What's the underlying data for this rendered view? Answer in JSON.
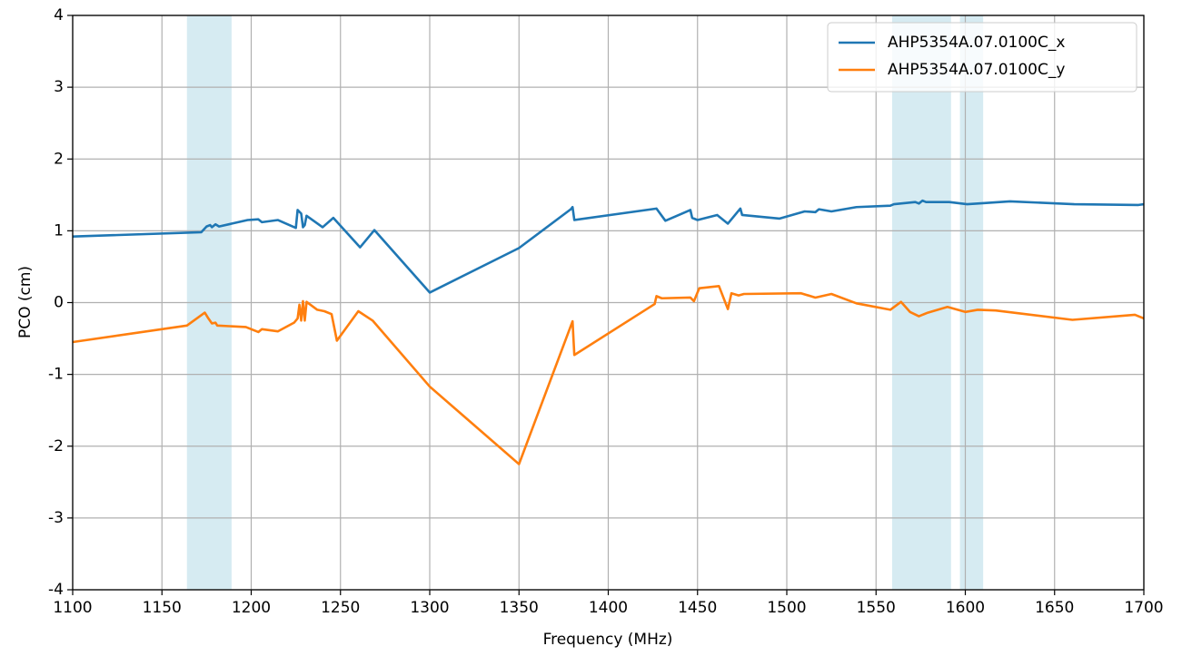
{
  "chart_data": {
    "type": "line",
    "xlabel": "Frequency (MHz)",
    "ylabel": "PCO (cm)",
    "xlim": [
      1100,
      1700
    ],
    "ylim": [
      -4,
      4
    ],
    "xticks": [
      1100,
      1150,
      1200,
      1250,
      1300,
      1350,
      1400,
      1450,
      1500,
      1550,
      1600,
      1650,
      1700
    ],
    "yticks": [
      -4,
      -3,
      -2,
      -1,
      0,
      1,
      2,
      3,
      4
    ],
    "grid": true,
    "legend": "upper right",
    "shaded_color": "#add8e6",
    "shaded_ranges": [
      [
        1164,
        1189
      ],
      [
        1559,
        1592
      ],
      [
        1597,
        1610
      ]
    ],
    "series": [
      {
        "name": "AHP5354A.07.0100C_x",
        "color": "#1f77b4",
        "x": [
          1100,
          1172,
          1175,
          1177,
          1178,
          1180,
          1182,
          1198,
          1204,
          1206,
          1215,
          1225,
          1226,
          1228,
          1229,
          1230,
          1231,
          1240,
          1246,
          1261,
          1269,
          1300,
          1350,
          1379,
          1380,
          1381,
          1427,
          1432,
          1446,
          1447,
          1450,
          1461,
          1467,
          1474,
          1475,
          1496,
          1510,
          1516,
          1518,
          1525,
          1539,
          1558,
          1560,
          1572,
          1574,
          1576,
          1578,
          1591,
          1601,
          1607,
          1625,
          1661,
          1697,
          1700
        ],
        "values": [
          0.92,
          0.98,
          1.06,
          1.08,
          1.05,
          1.09,
          1.06,
          1.15,
          1.16,
          1.12,
          1.15,
          1.04,
          1.29,
          1.24,
          1.05,
          1.08,
          1.21,
          1.05,
          1.18,
          0.77,
          1.01,
          0.14,
          0.76,
          1.3,
          1.33,
          1.15,
          1.31,
          1.14,
          1.29,
          1.18,
          1.15,
          1.22,
          1.1,
          1.31,
          1.22,
          1.17,
          1.27,
          1.26,
          1.3,
          1.27,
          1.33,
          1.35,
          1.37,
          1.4,
          1.38,
          1.42,
          1.4,
          1.4,
          1.37,
          1.38,
          1.41,
          1.37,
          1.36,
          1.37
        ]
      },
      {
        "name": "AHP5354A.07.0100C_y",
        "color": "#ff7f0e",
        "x": [
          1100,
          1164,
          1174,
          1176,
          1178,
          1180,
          1181,
          1197,
          1204,
          1206,
          1215,
          1224,
          1226,
          1227,
          1228,
          1229,
          1230,
          1231,
          1237,
          1241,
          1245,
          1248,
          1260,
          1268,
          1300,
          1350,
          1380,
          1381,
          1426,
          1427,
          1430,
          1446,
          1448,
          1451,
          1462,
          1467,
          1469,
          1473,
          1476,
          1508,
          1516,
          1525,
          1539,
          1558,
          1564,
          1569,
          1574,
          1579,
          1590,
          1600,
          1607,
          1617,
          1660,
          1695,
          1700
        ],
        "values": [
          -0.55,
          -0.32,
          -0.14,
          -0.22,
          -0.29,
          -0.28,
          -0.32,
          -0.34,
          -0.41,
          -0.37,
          -0.4,
          -0.28,
          -0.22,
          -0.03,
          -0.25,
          0.02,
          -0.25,
          0.01,
          -0.1,
          -0.12,
          -0.16,
          -0.53,
          -0.12,
          -0.25,
          -1.17,
          -2.25,
          -0.26,
          -0.73,
          -0.02,
          0.09,
          0.06,
          0.07,
          0.02,
          0.2,
          0.23,
          -0.09,
          0.13,
          0.1,
          0.12,
          0.13,
          0.07,
          0.12,
          -0.01,
          -0.1,
          0.01,
          -0.13,
          -0.19,
          -0.14,
          -0.06,
          -0.13,
          -0.1,
          -0.11,
          -0.24,
          -0.17,
          -0.22
        ]
      }
    ]
  }
}
